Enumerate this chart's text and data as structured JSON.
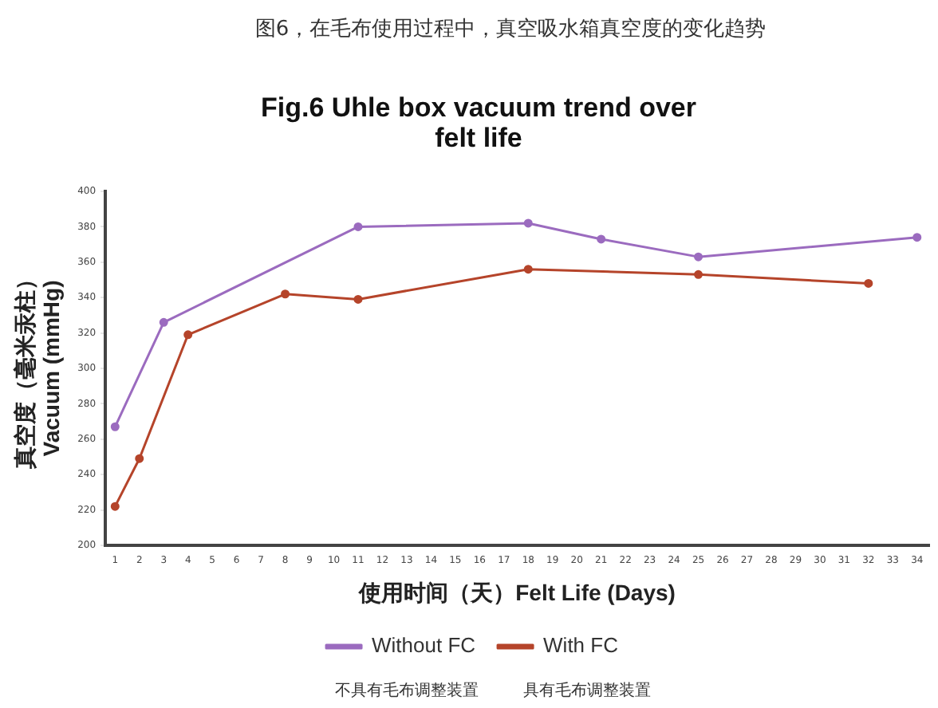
{
  "chart_data": {
    "type": "line",
    "title": "图6，在毛布使用过程中，真空吸水箱真空度的变化趋势",
    "subtitle": "Fig.6 Uhle box vacuum trend over felt life",
    "xlabel": "使用时间（天）Felt Life (Days)",
    "ylabel": "真空度（毫米汞柱）\nVacuum (mmHg)",
    "series": [
      {
        "name": "Without FC",
        "color": "#9b6bbf",
        "x": [
          1,
          3,
          11,
          18,
          21,
          25,
          34
        ],
        "values": [
          267,
          326,
          380,
          382,
          373,
          363,
          374
        ]
      },
      {
        "name": "With FC",
        "color": "#b5442a",
        "x": [
          1,
          2,
          4,
          8,
          11,
          18,
          25,
          32
        ],
        "values": [
          222,
          249,
          319,
          342,
          339,
          356,
          353,
          348
        ]
      }
    ],
    "xlim": [
      0.6,
      34.5
    ],
    "xticks": [
      1,
      2,
      3,
      4,
      5,
      6,
      7,
      8,
      9,
      10,
      11,
      12,
      13,
      14,
      15,
      16,
      17,
      18,
      19,
      20,
      21,
      22,
      23,
      24,
      25,
      26,
      27,
      28,
      29,
      30,
      31,
      32,
      33,
      34
    ],
    "ylim": [
      200,
      400
    ],
    "yticks": [
      200,
      220,
      240,
      260,
      280,
      300,
      320,
      340,
      360,
      380,
      400
    ],
    "grid": false,
    "legend": "bottom",
    "marker": "circle",
    "line_style": "solid",
    "annotations": [
      "不具有毛布调整装置",
      "具有毛布调整装置"
    ]
  }
}
